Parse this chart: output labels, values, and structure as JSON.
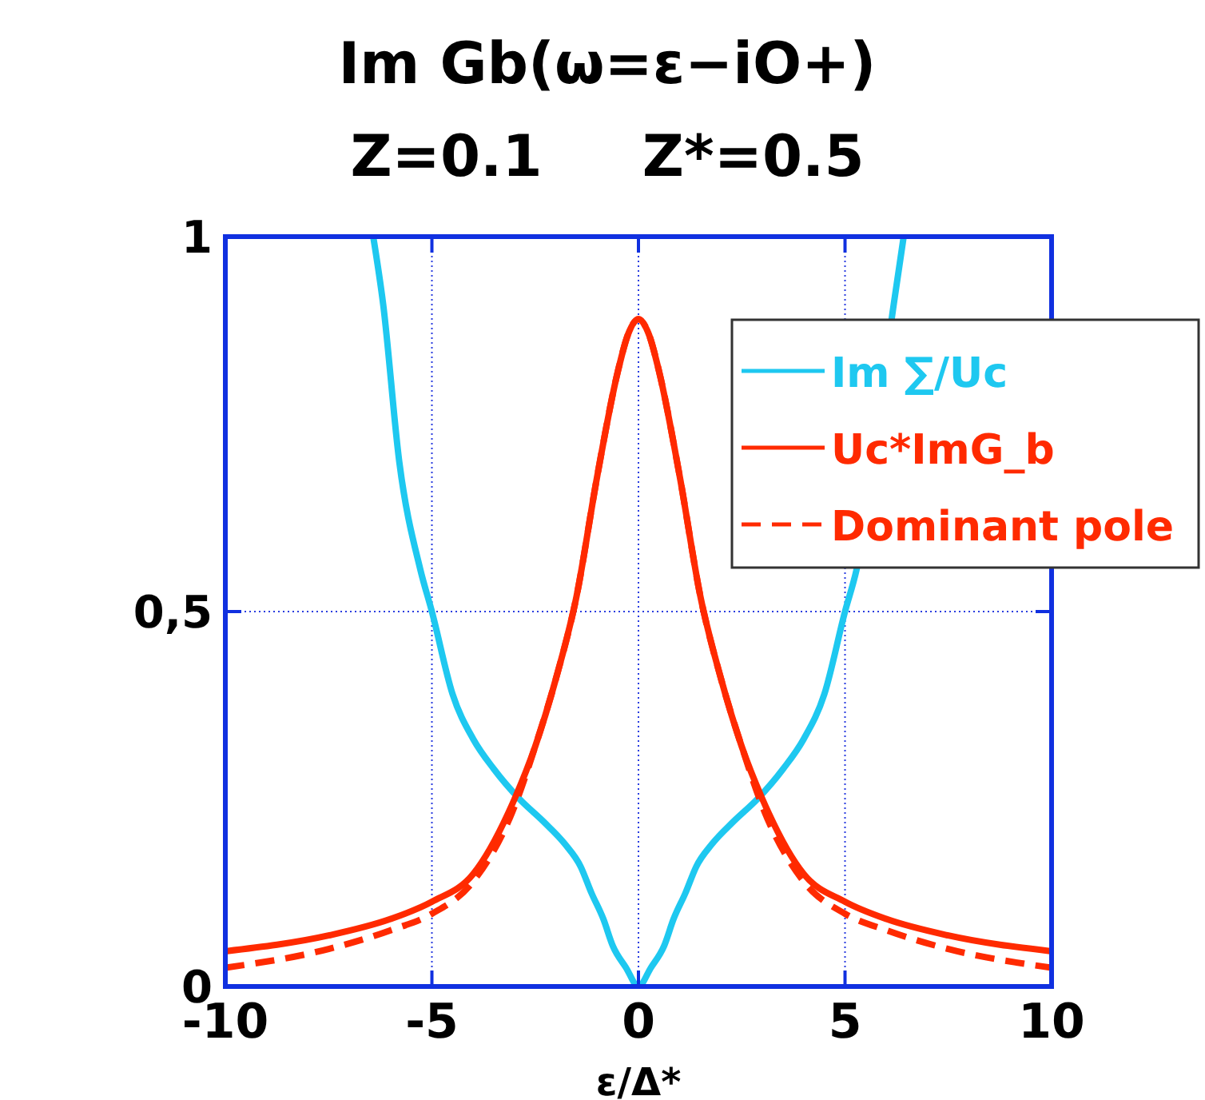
{
  "chart_data": {
    "type": "line",
    "title": "Im Gb(ω=ε−iO+)",
    "subtitle": "Z=0.1     Z*=0.5",
    "xlabel": "ε/Δ*",
    "xlim": [
      -10,
      10
    ],
    "ylim": [
      0,
      1
    ],
    "xticks": [
      -10,
      -5,
      0,
      5,
      10
    ],
    "yticks": [
      0,
      {
        "value": 0.5,
        "label": "0,5"
      },
      1
    ],
    "grid": true,
    "legend": "top right",
    "line_style": "solid",
    "series": [
      {
        "name": "Im ∑/Uc",
        "color": "#1ec8f0",
        "x": [
          -6.42,
          -6.18,
          -5.79,
          -5.28,
          -5,
          -4.5,
          -4,
          -3.5,
          -2.88,
          -2.3,
          -1.78,
          -1.4,
          -1.14,
          -0.85,
          -0.62,
          -0.3,
          0,
          0.3,
          0.62,
          0.85,
          1.14,
          1.4,
          1.78,
          2.3,
          2.88,
          3.5,
          4,
          4.5,
          5,
          5.28,
          6.18,
          6.42
        ],
        "values": [
          1,
          0.91,
          0.7,
          0.556,
          0.5,
          0.39,
          0.33,
          0.29,
          0.25,
          0.22,
          0.19,
          0.16,
          0.125,
          0.09,
          0.054,
          0.025,
          0,
          0.025,
          0.054,
          0.09,
          0.125,
          0.16,
          0.19,
          0.22,
          0.25,
          0.29,
          0.33,
          0.39,
          0.5,
          0.556,
          0.91,
          1
        ]
      },
      {
        "name": "Uc*ImG_b",
        "color": "#ff2a00",
        "x": [
          -10,
          -7.5,
          -6,
          -5,
          -4,
          -3,
          -2.5,
          -2,
          -1.5,
          -1,
          -0.5,
          -0.25,
          0,
          0.25,
          0.5,
          1,
          1.5,
          2,
          2.5,
          3,
          4,
          5,
          6,
          7.5,
          10
        ],
        "values": [
          0.047,
          0.068,
          0.09,
          0.113,
          0.15,
          0.25,
          0.32,
          0.41,
          0.52,
          0.68,
          0.82,
          0.87,
          0.89,
          0.87,
          0.82,
          0.68,
          0.52,
          0.41,
          0.32,
          0.25,
          0.15,
          0.113,
          0.09,
          0.068,
          0.047
        ]
      },
      {
        "name": "Dominant pole",
        "color": "#ff2a00",
        "line_style": "dashed",
        "x": [
          -10,
          -7.5,
          -6,
          -5,
          -4,
          -3,
          -2.5,
          -2,
          -1.5,
          -1,
          -0.5,
          -0.25,
          0,
          0.25,
          0.5,
          1,
          1.5,
          2,
          2.5,
          3,
          4,
          5,
          6,
          7.5,
          10
        ],
        "values": [
          0.025,
          0.05,
          0.075,
          0.097,
          0.14,
          0.24,
          0.32,
          0.41,
          0.52,
          0.68,
          0.82,
          0.87,
          0.89,
          0.87,
          0.82,
          0.68,
          0.52,
          0.41,
          0.32,
          0.24,
          0.14,
          0.097,
          0.075,
          0.05,
          0.025
        ]
      }
    ]
  }
}
